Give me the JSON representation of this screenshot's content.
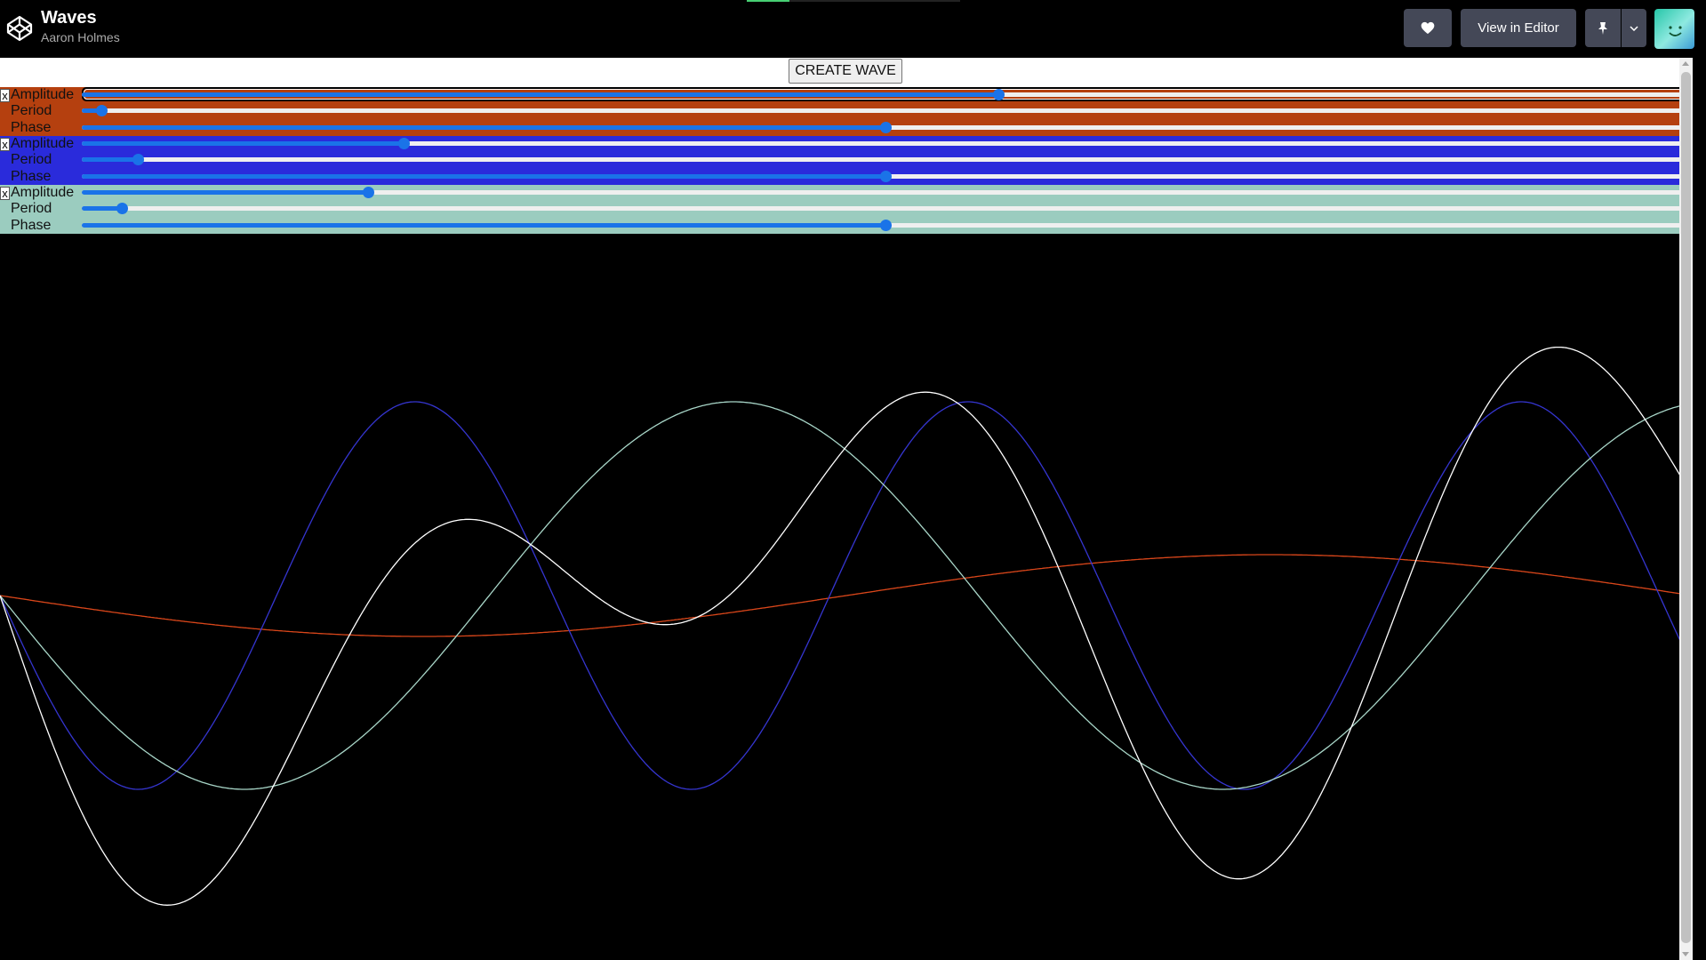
{
  "header": {
    "title": "Waves",
    "author": "Aaron Holmes",
    "view_editor_label": "View in Editor",
    "loading_progress": 0.2,
    "icons": {
      "logo": "codepen-logo-icon",
      "heart": "heart-icon",
      "pin": "pin-icon",
      "caret": "chevron-down-icon",
      "avatar": "user-avatar"
    },
    "avatar_colors": [
      "#26c6a8",
      "#8ee9e0",
      "#3b9bd6"
    ]
  },
  "page": {
    "create_wave_label": "CREATE WAVE",
    "waves": [
      {
        "remove_label": "x",
        "background": "#b5400f",
        "stroke": "#d9461a",
        "controls": [
          {
            "label": "Amplitude",
            "value": 0.57,
            "focused": true
          },
          {
            "label": "Period",
            "value": 0.012
          },
          {
            "label": "Phase",
            "value": 0.5
          }
        ]
      },
      {
        "remove_label": "x",
        "background": "#2a2bdb",
        "stroke": "#3535d0",
        "controls": [
          {
            "label": "Amplitude",
            "value": 0.2
          },
          {
            "label": "Period",
            "value": 0.035
          },
          {
            "label": "Phase",
            "value": 0.5
          }
        ]
      },
      {
        "remove_label": "x",
        "background": "#9bccbf",
        "stroke": "#a8d6c8",
        "controls": [
          {
            "label": "Amplitude",
            "value": 0.178
          },
          {
            "label": "Period",
            "value": 0.025
          },
          {
            "label": "Phase",
            "value": 0.5
          }
        ]
      }
    ],
    "combined_stroke": "#ffffff"
  }
}
